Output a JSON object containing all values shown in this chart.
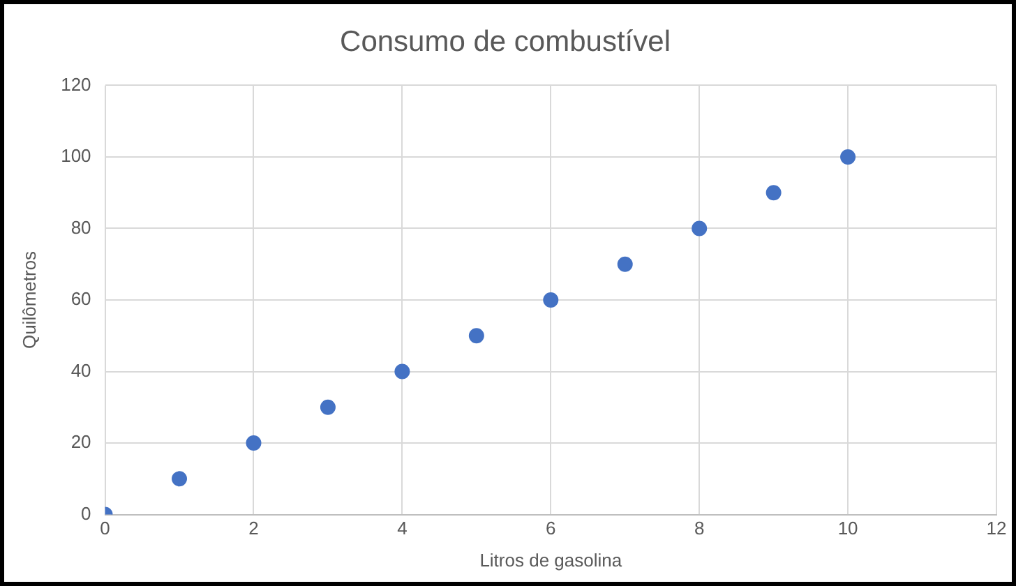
{
  "chart_data": {
    "type": "scatter",
    "title": "Consumo de combustível",
    "xlabel": "Litros de gasolina",
    "ylabel": "Quilômetros",
    "x": [
      0,
      1,
      2,
      3,
      4,
      5,
      6,
      7,
      8,
      9,
      10
    ],
    "values": [
      0,
      10,
      20,
      30,
      40,
      50,
      60,
      70,
      80,
      90,
      100
    ],
    "color": "#4472c4",
    "marker": "circle",
    "xlim": [
      0,
      12
    ],
    "xticks": [
      0,
      2,
      4,
      6,
      8,
      10,
      12
    ],
    "ylim": [
      0,
      120
    ],
    "yticks": [
      0,
      20,
      40,
      60,
      80,
      100,
      120
    ],
    "grid": true,
    "legend": false
  }
}
